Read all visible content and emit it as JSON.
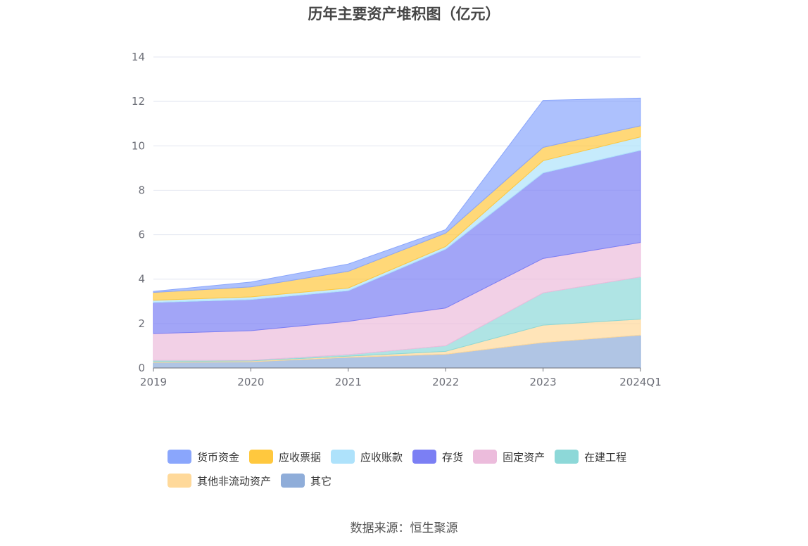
{
  "chart_data": {
    "type": "area",
    "stacked": true,
    "title": "历年主要资产堆积图（亿元）",
    "categories": [
      "2019",
      "2020",
      "2021",
      "2022",
      "2023",
      "2024Q1"
    ],
    "yticks": [
      "0",
      "2",
      "4",
      "6",
      "8",
      "10",
      "12",
      "14"
    ],
    "ylim": [
      0,
      14
    ],
    "grid": true,
    "legend_position": "bottom",
    "series": [
      {
        "name": "其它",
        "color": "#8fadd9",
        "values": [
          0.25,
          0.28,
          0.48,
          0.62,
          1.15,
          1.48
        ]
      },
      {
        "name": "其他非流动资产",
        "color": "#ffd99a",
        "values": [
          0.03,
          0.04,
          0.05,
          0.13,
          0.78,
          0.72
        ]
      },
      {
        "name": "在建工程",
        "color": "#8dd8d8",
        "values": [
          0.07,
          0.03,
          0.07,
          0.25,
          1.45,
          1.9
        ]
      },
      {
        "name": "固定资产",
        "color": "#ecbcdc",
        "values": [
          1.2,
          1.33,
          1.5,
          1.7,
          1.55,
          1.55
        ]
      },
      {
        "name": "存货",
        "color": "#7b7ff4",
        "values": [
          1.4,
          1.4,
          1.38,
          2.65,
          3.85,
          4.15
        ]
      },
      {
        "name": "应收账款",
        "color": "#aee2fb",
        "values": [
          0.1,
          0.12,
          0.12,
          0.12,
          0.55,
          0.6
        ]
      },
      {
        "name": "应收票据",
        "color": "#ffc83e",
        "values": [
          0.35,
          0.45,
          0.75,
          0.6,
          0.6,
          0.5
        ]
      },
      {
        "name": "货币资金",
        "color": "#8aa6fc",
        "values": [
          0.05,
          0.22,
          0.33,
          0.16,
          2.12,
          1.25
        ]
      }
    ],
    "legend_order": [
      "货币资金",
      "应收票据",
      "应收账款",
      "存货",
      "固定资产",
      "在建工程",
      "其他非流动资产",
      "其它"
    ]
  },
  "footer": {
    "source": "数据来源：恒生聚源"
  },
  "colors": {
    "grid": "#e3e6f0",
    "axis": "#6e7079",
    "tick_label": "#6e7079"
  }
}
